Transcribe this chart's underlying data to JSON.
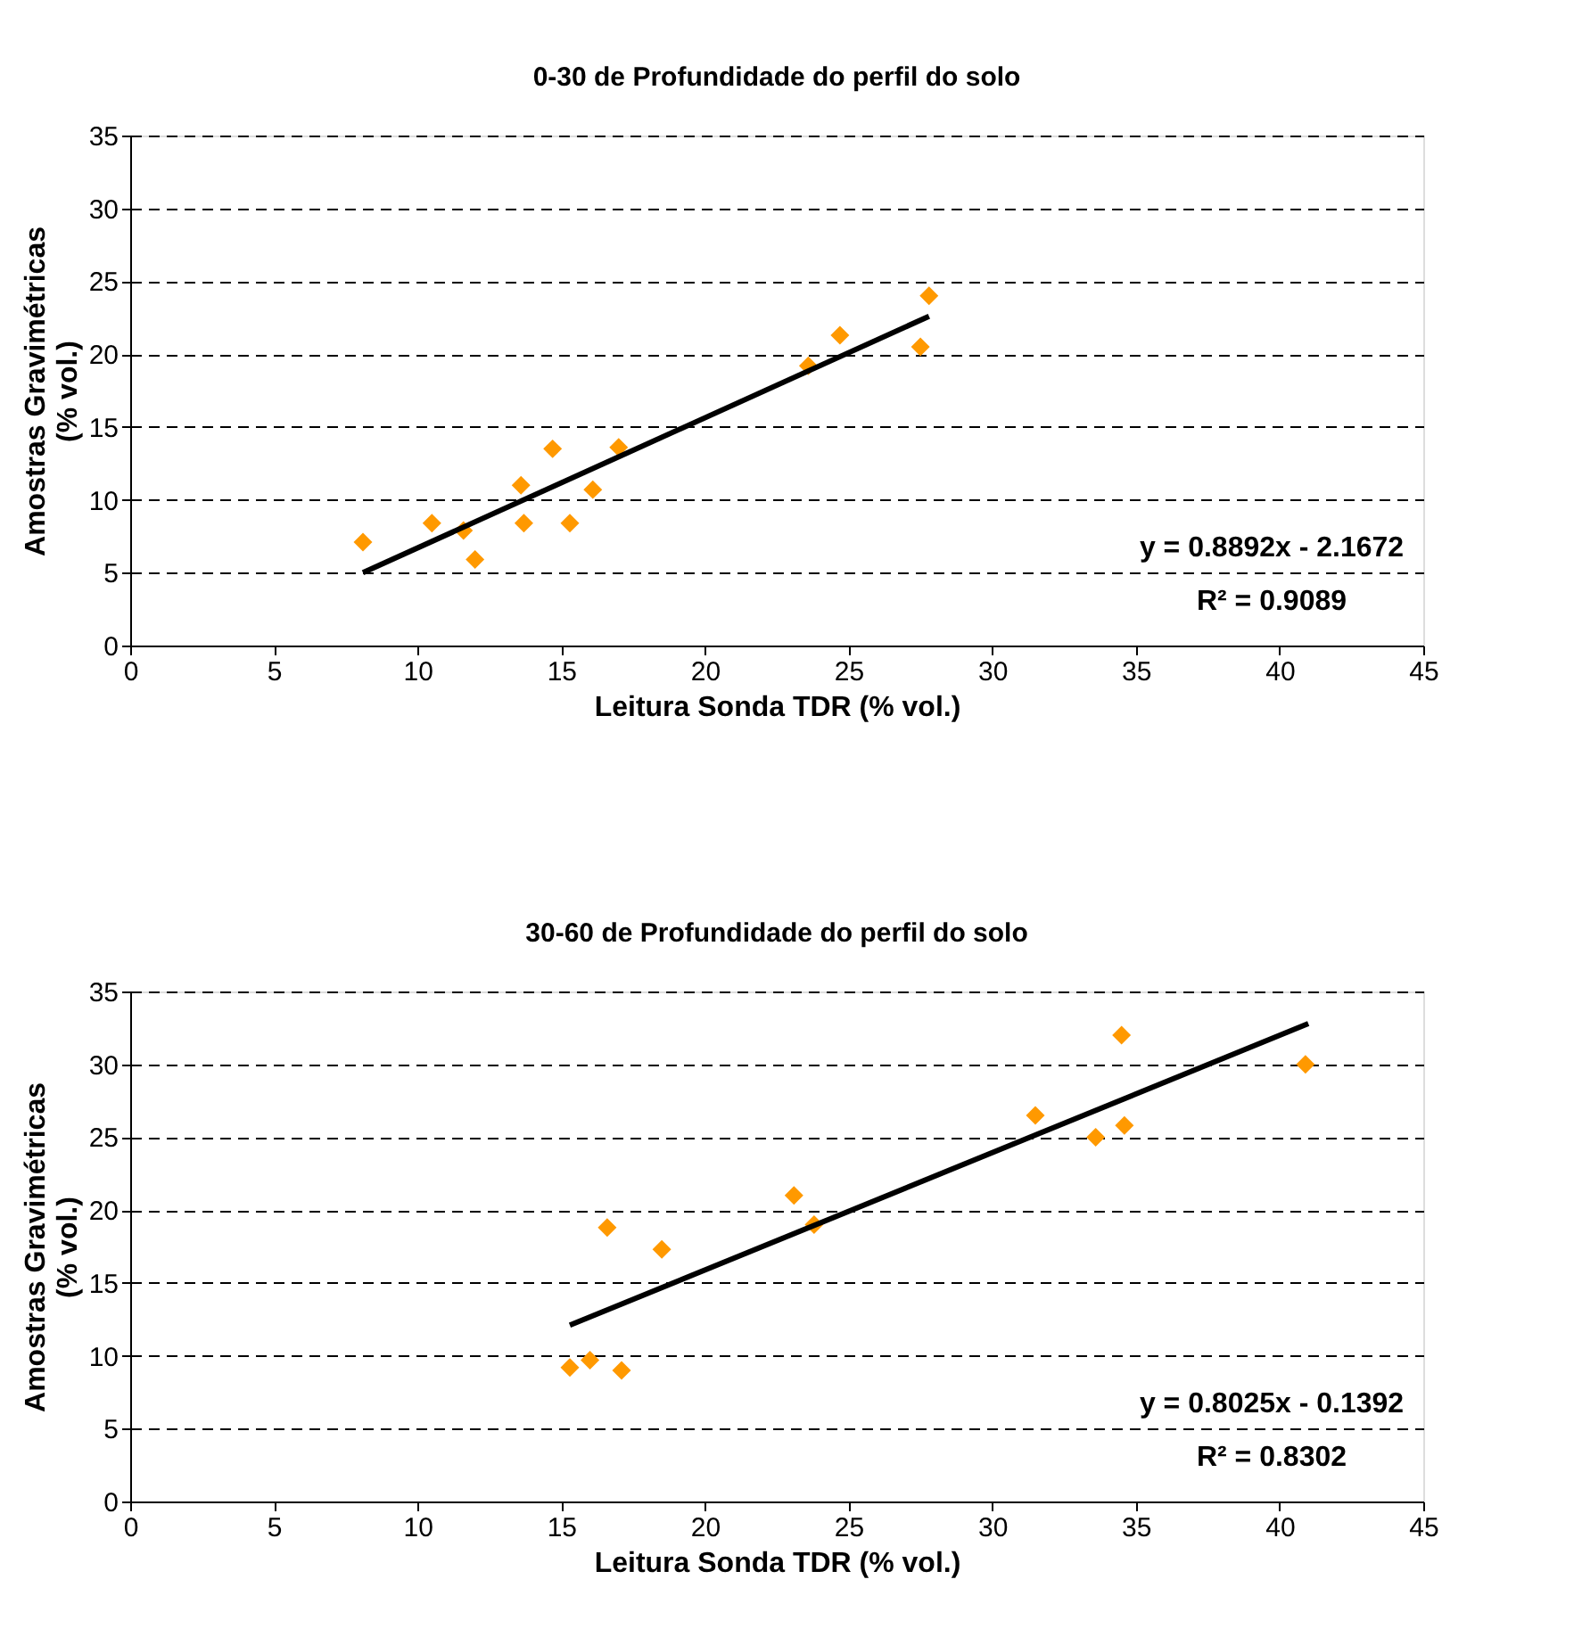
{
  "chart_data": [
    {
      "type": "scatter",
      "title": "0-30 de Profundidade do perfil do solo",
      "xlabel": "Leitura Sonda TDR (% vol.)",
      "ylabel": "Amostras Gravimétricas (% vol.)",
      "xlim": [
        0,
        45
      ],
      "xticks": [
        0,
        5,
        10,
        15,
        20,
        25,
        30,
        35,
        40,
        45
      ],
      "ylim": [
        0,
        35
      ],
      "yticks": [
        0,
        5,
        10,
        15,
        20,
        25,
        30,
        35
      ],
      "grid": "y",
      "series": [
        {
          "marker": "diamond",
          "color": "#ff9900",
          "x": [
            8.1,
            10.5,
            11.6,
            12.0,
            13.6,
            13.7,
            14.7,
            15.3,
            16.1,
            17.0,
            23.6,
            24.7,
            27.5,
            27.8
          ],
          "values": [
            7.1,
            8.4,
            7.9,
            5.9,
            11.0,
            8.4,
            13.5,
            8.4,
            10.7,
            13.6,
            19.2,
            21.3,
            20.5,
            24.0
          ]
        },
        {
          "type": "line",
          "color": "#000000",
          "x": [
            8.1,
            27.8
          ],
          "values": [
            5.0,
            22.6
          ]
        }
      ],
      "annotations": [
        "y = 0.8892x - 2.1672",
        "R² = 0.9089"
      ]
    },
    {
      "type": "scatter",
      "title": "30-60 de Profundidade do perfil do solo",
      "xlabel": "Leitura Sonda TDR (% vol.)",
      "ylabel": "Amostras Gravimétricas (% vol.)",
      "xlim": [
        0,
        45
      ],
      "xticks": [
        0,
        5,
        10,
        15,
        20,
        25,
        30,
        35,
        40,
        45
      ],
      "ylim": [
        0,
        35
      ],
      "yticks": [
        0,
        5,
        10,
        15,
        20,
        25,
        30,
        35
      ],
      "grid": "y",
      "series": [
        {
          "marker": "diamond",
          "color": "#ff9900",
          "x": [
            15.3,
            16.0,
            16.6,
            17.1,
            18.5,
            23.1,
            23.8,
            31.5,
            33.6,
            34.5,
            34.6,
            40.9
          ],
          "values": [
            9.2,
            9.7,
            18.8,
            9.0,
            17.3,
            21.0,
            19.0,
            26.5,
            25.0,
            32.0,
            25.8,
            30.0
          ]
        },
        {
          "type": "line",
          "color": "#000000",
          "x": [
            15.3,
            41.0
          ],
          "values": [
            12.1,
            32.8
          ]
        }
      ],
      "annotations": [
        "y = 0.8025x - 0.1392",
        "R² = 0.8302"
      ]
    }
  ]
}
